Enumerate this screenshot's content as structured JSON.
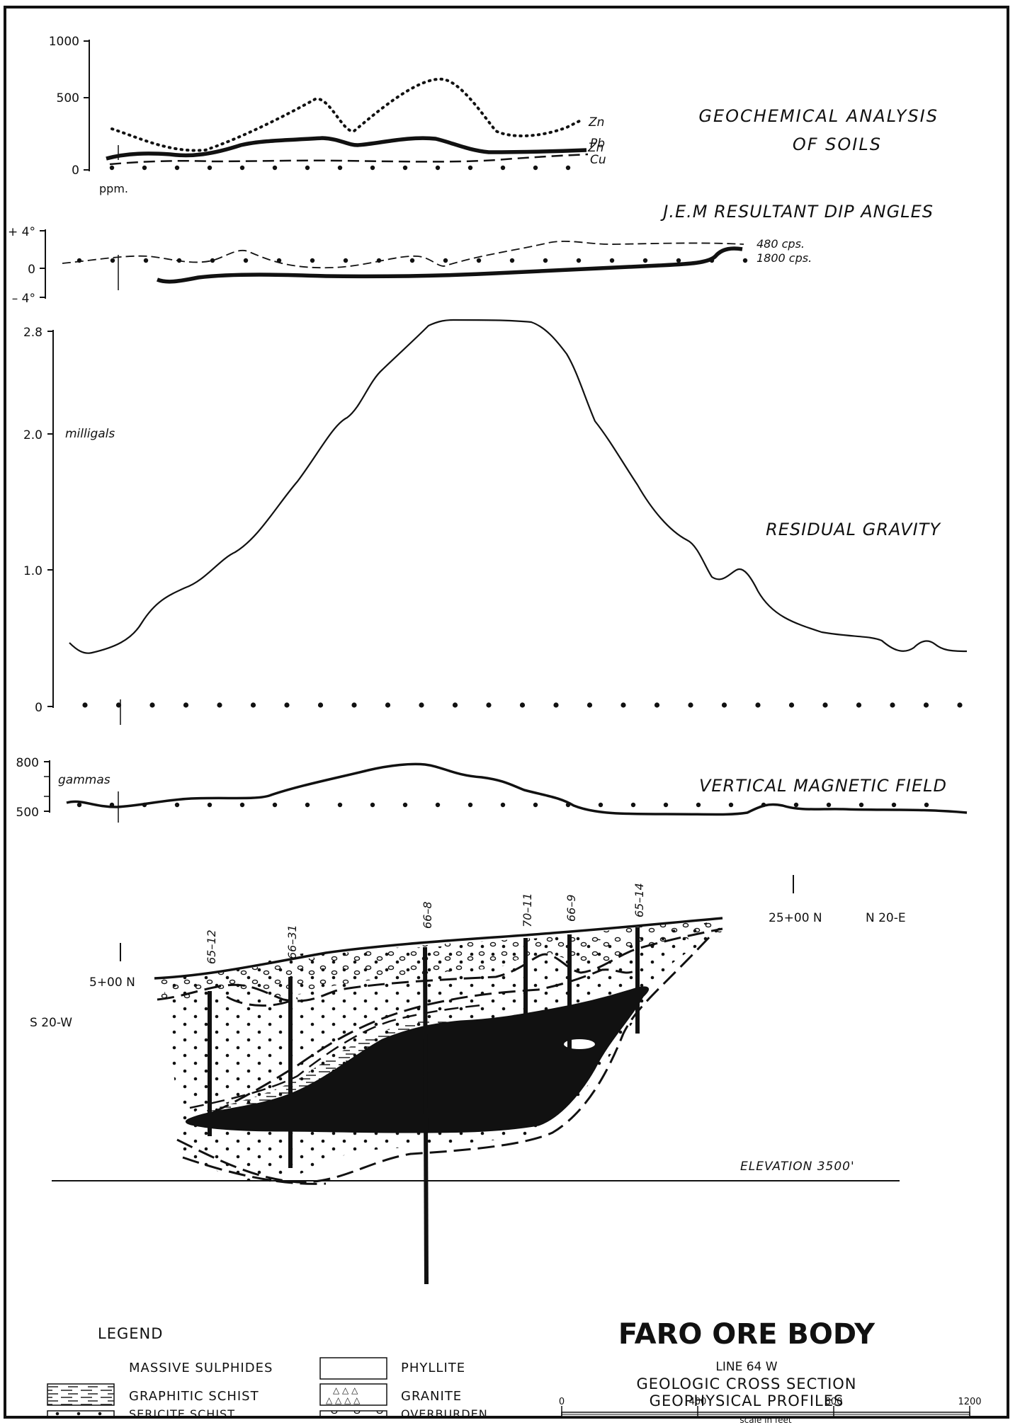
{
  "geochem": {
    "title_line1": "GEOCHEMICAL ANALYSIS",
    "title_line2": "OF SOILS",
    "y_ticks": [
      "1000",
      "500",
      "0"
    ],
    "unit": "ppm.",
    "series_labels": {
      "zn": "Zn",
      "pb": "Pb",
      "cu": "Cu"
    }
  },
  "jem": {
    "title": "J.E.M RESULTANT DIP ANGLES",
    "y_ticks": [
      "+ 4°",
      "0",
      "– 4°"
    ],
    "series_labels": {
      "cps480": "480 cps.",
      "cps1800": "1800 cps."
    }
  },
  "gravity": {
    "title": "RESIDUAL GRAVITY",
    "unit": "milligals",
    "y_ticks": [
      "2.8",
      "2.0",
      "1.0",
      "0"
    ]
  },
  "magnetic": {
    "title": "VERTICAL MAGNETIC FIELD",
    "unit": "gammas",
    "y_ticks": [
      "800",
      "500"
    ]
  },
  "section": {
    "drill_holes": [
      "65–12",
      "66–31",
      "66–8",
      "70–11",
      "66–9",
      "65–14"
    ],
    "station_south": "5+00 N",
    "station_north": "25+00 N",
    "direction_south": "S 20-W",
    "direction_north": "N 20-E",
    "elevation": "ELEVATION 3500'"
  },
  "legend": {
    "title": "LEGEND",
    "items": [
      {
        "label": "MASSIVE SULPHIDES",
        "pattern": "none"
      },
      {
        "label": "GRAPHITIC SCHIST",
        "pattern": "dashes"
      },
      {
        "label": "SERICITE SCHIST",
        "pattern": "dots"
      },
      {
        "label": "PHYLLITE",
        "pattern": "blank"
      },
      {
        "label": "GRANITE",
        "pattern": "triangles"
      },
      {
        "label": "OVERBURDEN",
        "pattern": "circles"
      }
    ]
  },
  "title_block": {
    "title": "FARO ORE BODY",
    "line": "LINE 64 W",
    "subtitle1": "GEOLOGIC CROSS SECTION",
    "subtitle2": "GEOPHYSICAL PROFILES"
  },
  "scale": {
    "ticks": [
      "0",
      "400",
      "800",
      "1200"
    ],
    "caption": "scale in feet"
  },
  "colors": {
    "ink": "#111111",
    "paper": "#ffffff"
  }
}
